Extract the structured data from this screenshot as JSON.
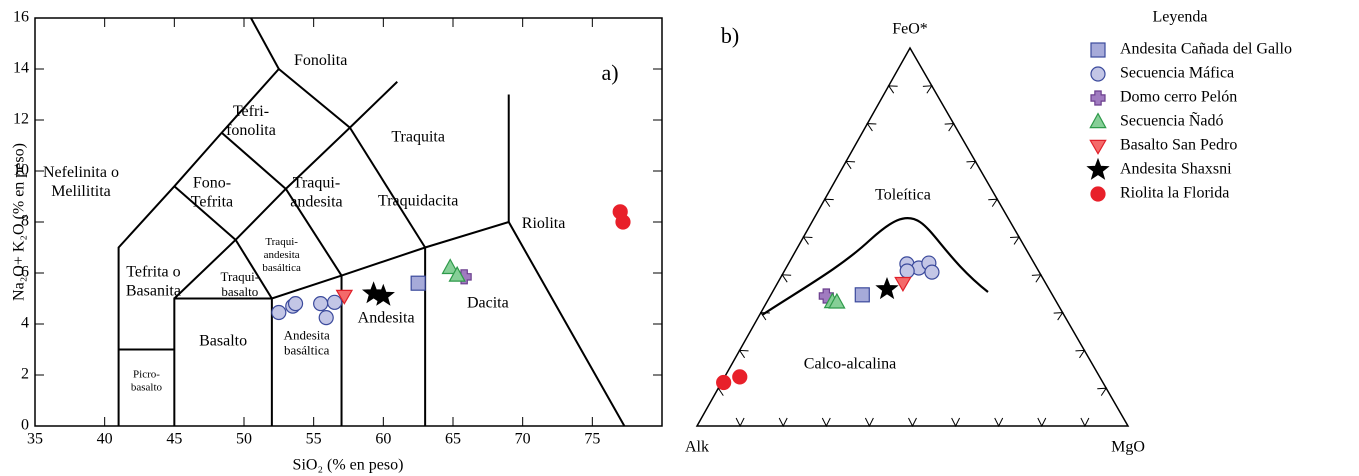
{
  "chart_data": [
    {
      "type": "scatter",
      "title": "a)",
      "x_label": "SiO₂ (% en peso)",
      "y_label": "Na₂O+ K₂O (% en peso)",
      "xlim": [
        35,
        80
      ],
      "ylim": [
        0,
        16
      ],
      "xticks": [
        35,
        40,
        45,
        50,
        55,
        60,
        65,
        70,
        75
      ],
      "yticks": [
        0,
        2,
        4,
        6,
        8,
        10,
        12,
        14,
        16
      ],
      "legend_title": "Leyenda",
      "annotations": [
        [
          "Fonolita"
        ],
        [
          "Tefri-",
          "fonolita"
        ],
        [
          "Traquita"
        ],
        [
          "Nefelinita o",
          "Melilitita"
        ],
        [
          "Fono-",
          "Tefrita"
        ],
        [
          "Traqui-",
          "andesita"
        ],
        [
          "Traquidacita"
        ],
        [
          "Riolita"
        ],
        [
          "Tefrita o",
          "Basanita"
        ],
        [
          "Traqui-",
          "andesita",
          "basáltica"
        ],
        [
          "Traqui-",
          "basalto"
        ],
        [
          "Andesita"
        ],
        [
          "Dacita"
        ],
        [
          "Basalto"
        ],
        [
          "Andesita",
          "basáltica"
        ],
        [
          "Picro-",
          "basalto"
        ]
      ],
      "series": [
        {
          "name": "Andesita Cañada del Gallo",
          "marker": "square",
          "color": "#a6aad9",
          "edgecolor": "#3b4a9c",
          "x": [
            62.5
          ],
          "values": [
            5.6
          ]
        },
        {
          "name": "Secuencia Máfica",
          "marker": "circle",
          "color": "#c3c6e6",
          "edgecolor": "#3b4a9c",
          "x": [
            52.5,
            53.5,
            53.7,
            55.5,
            55.9,
            56.5
          ],
          "values": [
            4.45,
            4.7,
            4.8,
            4.8,
            4.25,
            4.85
          ]
        },
        {
          "name": "Domo cerro Pelón",
          "marker": "plus",
          "color": "#a07bc0",
          "edgecolor": "#6b3f8e",
          "x": [
            65.8
          ],
          "values": [
            5.85
          ]
        },
        {
          "name": "Secuencia Ñadó",
          "marker": "triangle",
          "color": "#86cf97",
          "edgecolor": "#2e9a4a",
          "x": [
            64.8,
            65.3
          ],
          "values": [
            6.2,
            5.9
          ]
        },
        {
          "name": "Basalto San Pedro",
          "marker": "triangle-down",
          "color": "#f46a6a",
          "edgecolor": "#e0202a",
          "x": [
            57.2
          ],
          "values": [
            5.1
          ]
        },
        {
          "name": "Andesita Shaxsni",
          "marker": "star",
          "color": "#000000",
          "edgecolor": "#000000",
          "x": [
            59.3,
            60.0
          ],
          "values": [
            5.2,
            5.1
          ]
        },
        {
          "name": "Riolita la Florida",
          "marker": "circle",
          "color": "#e8202a",
          "edgecolor": "#e8202a",
          "x": [
            77.0,
            77.2
          ],
          "values": [
            8.4,
            8.0
          ]
        }
      ]
    },
    {
      "type": "ternary",
      "title": "b)",
      "top_label": "FeO*",
      "left_label": "Alk",
      "right_label": "MgO",
      "annotations": [
        "Toleítica",
        "Calco-alcalina"
      ],
      "ticks": [
        10,
        20,
        30,
        40,
        50,
        60,
        70,
        80,
        90
      ],
      "series": [
        {
          "marker": "square",
          "color": "#a6aad9",
          "edgecolor": "#3b4a9c",
          "a": [
            44.1
          ],
          "f": [
            34.7
          ],
          "m": [
            21.2
          ]
        },
        {
          "marker": "circle",
          "color": "#c3c6e6",
          "edgecolor": "#3b4a9c",
          "a": [
            29.6,
            27.4,
            30.5,
            24.4,
            24.9
          ],
          "f": [
            42.9,
            41.8,
            41.0,
            43.1,
            40.7
          ],
          "m": [
            27.5,
            30.8,
            28.5,
            32.5,
            34.4
          ]
        },
        {
          "marker": "plus",
          "color": "#a07bc0",
          "edgecolor": "#6b3f8e",
          "a": [
            52.6
          ],
          "f": [
            34.4
          ],
          "m": [
            13.0
          ]
        },
        {
          "marker": "triangle",
          "color": "#86cf97",
          "edgecolor": "#2e9a4a",
          "a": [
            52.0,
            51.0
          ],
          "f": [
            32.8,
            32.7
          ],
          "m": [
            15.2,
            16.3
          ]
        },
        {
          "marker": "triangle-down",
          "color": "#f46a6a",
          "edgecolor": "#e0202a",
          "a": [
            33.1
          ],
          "f": [
            37.8
          ],
          "m": [
            29.1
          ]
        },
        {
          "marker": "star",
          "color": "#000000",
          "edgecolor": "#000000",
          "a": [
            37.6
          ],
          "f": [
            36.2
          ],
          "m": [
            26.2
          ]
        },
        {
          "marker": "circle",
          "color": "#e8202a",
          "edgecolor": "#e8202a",
          "a": [
            88.0,
            83.5
          ],
          "f": [
            11.5,
            13.0
          ],
          "m": [
            0.5,
            3.5
          ]
        }
      ]
    }
  ]
}
